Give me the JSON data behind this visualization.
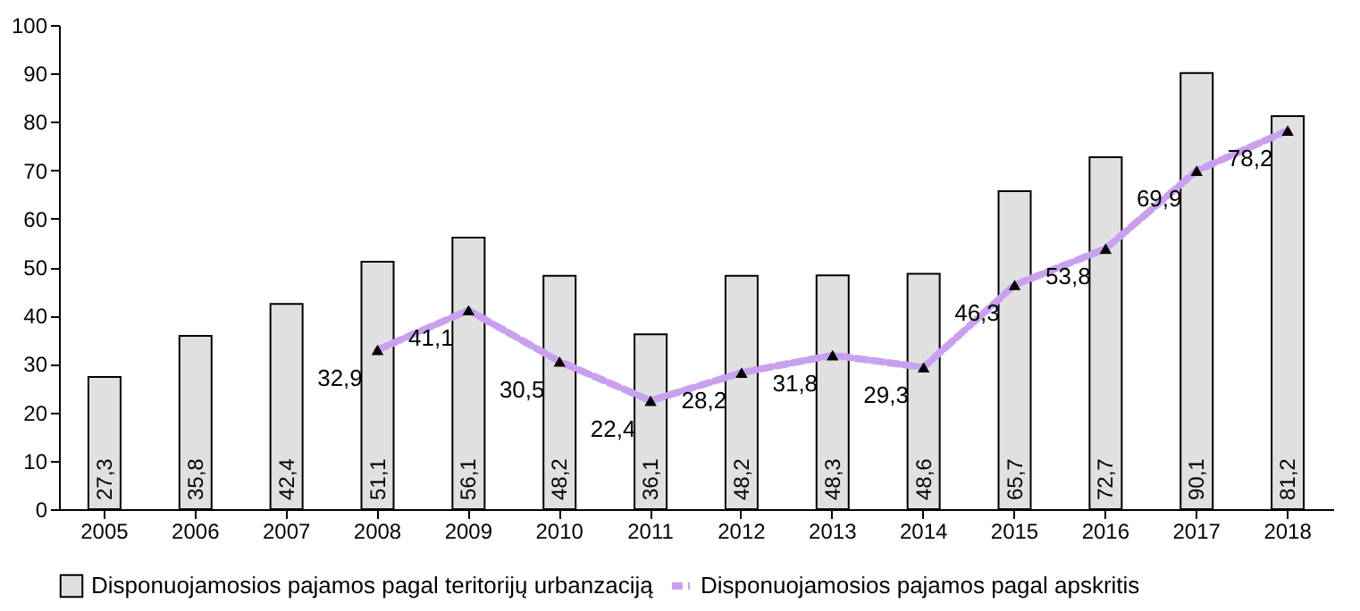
{
  "chart_data": {
    "type": "bar",
    "categories": [
      "2005",
      "2006",
      "2007",
      "2008",
      "2009",
      "2010",
      "2011",
      "2012",
      "2013",
      "2014",
      "2015",
      "2016",
      "2017",
      "2018"
    ],
    "series": [
      {
        "name": "Disponuojamosios pajamos pagal teritorijų urbanzaciją",
        "color": "#e0e0e0",
        "values": [
          27.3,
          35.8,
          42.4,
          51.1,
          56.1,
          48.2,
          36.1,
          48.2,
          48.3,
          48.6,
          65.7,
          72.7,
          90.1,
          81.2
        ],
        "value_labels": [
          "27,3",
          "35,8",
          "42,4",
          "51,1",
          "56,1",
          "48,2",
          "36,1",
          "48,2",
          "48,3",
          "48,6",
          "65,7",
          "72,7",
          "90,1",
          "81,2"
        ]
      },
      {
        "name": "Disponuojamosios pajamos pagal apskritis",
        "type": "line",
        "color": "#c9a0f0",
        "marker": "triangle",
        "line_style": "dashed",
        "values": [
          null,
          null,
          null,
          32.9,
          41.1,
          30.5,
          22.4,
          28.2,
          31.8,
          29.3,
          46.3,
          53.8,
          69.9,
          78.2
        ],
        "value_labels": [
          null,
          null,
          null,
          "32,9",
          "41,1",
          "30,5",
          "22,4",
          "28,2",
          "31,8",
          "29,3",
          "46,3",
          "53,8",
          "69,9",
          "78,2"
        ]
      }
    ],
    "ylim": [
      0,
      100
    ],
    "yticks": [
      0,
      10,
      20,
      30,
      40,
      50,
      60,
      70,
      80,
      90,
      100
    ],
    "legend": "bottom"
  }
}
